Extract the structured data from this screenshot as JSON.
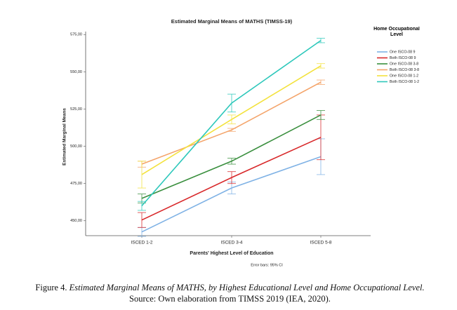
{
  "chart_data": {
    "type": "line",
    "title": "Estimated Marginal Means of MATHS (TIMSS-19)",
    "x_label": "Parents' Highest Level of Education",
    "y_label": "Estimated Marginal Means",
    "note": "Error bars: 95% CI",
    "legend_title": "Home Occupational Level",
    "legend_position": "right",
    "categories": [
      "ISCED 1-2",
      "ISCED 3-4",
      "ISCED 5-8"
    ],
    "ylim": [
      440,
      577
    ],
    "yticks": [
      {
        "value": 450,
        "label": "450,00"
      },
      {
        "value": 475,
        "label": "475,00"
      },
      {
        "value": 500,
        "label": "500,00"
      },
      {
        "value": 525,
        "label": "525,00"
      },
      {
        "value": 550,
        "label": "550,00"
      },
      {
        "value": 575,
        "label": "575,00"
      }
    ],
    "series": [
      {
        "name": "One ISCO-08 9",
        "color": "#7fb2e5",
        "values": [
          442.5,
          472,
          493
        ],
        "errors": [
          3,
          4,
          12
        ]
      },
      {
        "name": "Both ISCO-08 9",
        "color": "#d8282a",
        "values": [
          450.5,
          479,
          506
        ],
        "errors": [
          5,
          4,
          15
        ]
      },
      {
        "name": "One ISCO-08 3-8",
        "color": "#3a8f3e",
        "values": [
          465,
          490,
          521
        ],
        "errors": [
          3,
          2,
          3
        ]
      },
      {
        "name": "Both ISCO-08 3-8",
        "color": "#f4a46a",
        "values": [
          488,
          511,
          543
        ],
        "errors": [
          2,
          1,
          1.5
        ]
      },
      {
        "name": "One ISCO-08 1-2",
        "color": "#f3e23e",
        "values": [
          481,
          518,
          554
        ],
        "errors": [
          9,
          3,
          1.5
        ]
      },
      {
        "name": "Both ISCO-08 1-2",
        "color": "#2ec8bb",
        "values": [
          460,
          529,
          571
        ],
        "errors": [
          3,
          6,
          1.5
        ]
      }
    ]
  },
  "caption": {
    "label": "Figure 4.",
    "title": "Estimated Marginal Means of MATHS, by Highest Educational Level and Home Occupational Level.",
    "source": "Source: Own elaboration from TIMSS 2019 (IEA, 2020)."
  }
}
